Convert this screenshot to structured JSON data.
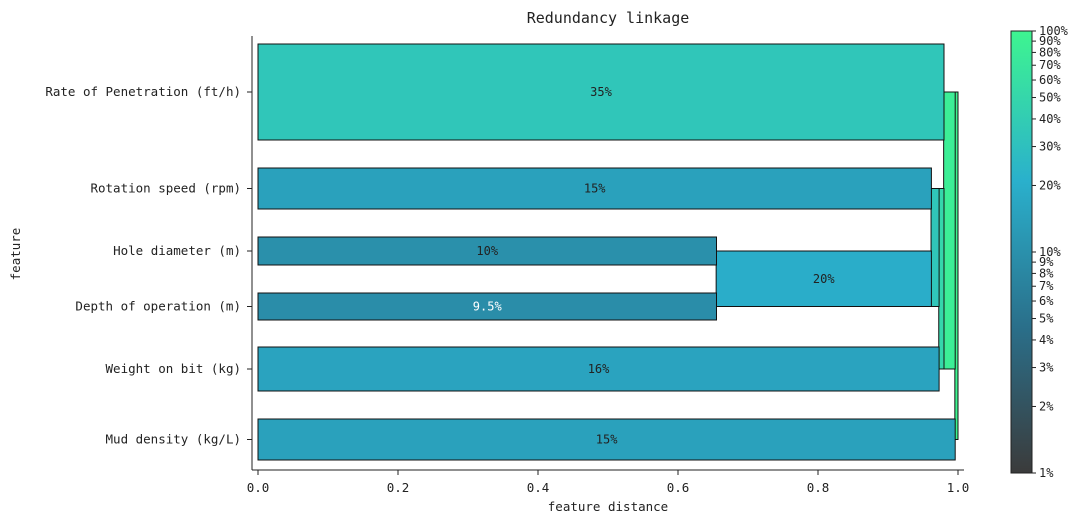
{
  "chart_data": {
    "type": "bar",
    "orientation": "horizontal",
    "title": "Redundancy linkage",
    "xlabel": "feature distance",
    "ylabel": "feature",
    "xlim": [
      0.0,
      1.0
    ],
    "xticks": [
      {
        "value": 0.0,
        "label": "0.0"
      },
      {
        "value": 0.2,
        "label": "0.2"
      },
      {
        "value": 0.4,
        "label": "0.4"
      },
      {
        "value": 0.6,
        "label": "0.6"
      },
      {
        "value": 0.8,
        "label": "0.8"
      },
      {
        "value": 1.0,
        "label": "1.0"
      }
    ],
    "features": [
      {
        "name": "Rate of Penetration (ft/h)",
        "distance": 0.98,
        "label": "35%",
        "percent": 35
      },
      {
        "name": "Rotation speed (rpm)",
        "distance": 0.962,
        "label": "15%",
        "percent": 15
      },
      {
        "name": "Hole diameter (m)",
        "distance": 0.655,
        "label": "10%",
        "percent": 10
      },
      {
        "name": "Depth of operation (m)",
        "distance": 0.655,
        "label": "9.5%",
        "percent": 9.5
      },
      {
        "name": "Weight on bit (kg)",
        "distance": 0.973,
        "label": "16%",
        "percent": 16
      },
      {
        "name": "Mud density (kg/L)",
        "distance": 0.996,
        "label": "15%",
        "percent": 15
      }
    ],
    "clusters": [
      {
        "members": [
          "Hole diameter (m)",
          "Depth of operation (m)"
        ],
        "distance": 0.962,
        "label": "20%",
        "percent": 20
      },
      {
        "members": [
          "Rotation speed (rpm)",
          "Hole diameter (m)",
          "Depth of operation (m)"
        ],
        "distance": 0.973,
        "label": "",
        "percent": 35
      },
      {
        "members": [
          "Rotation speed (rpm)",
          "Hole diameter (m)",
          "Depth of operation (m)",
          "Weight on bit (kg)"
        ],
        "distance": 0.98,
        "label": "",
        "percent": 50
      },
      {
        "members": [
          "Rate of Penetration (ft/h)",
          "Rotation speed (rpm)",
          "Hole diameter (m)",
          "Depth of operation (m)",
          "Weight on bit (kg)"
        ],
        "distance": 0.996,
        "label": "",
        "percent": 85
      },
      {
        "members": [
          "Rate of Penetration (ft/h)",
          "Rotation speed (rpm)",
          "Hole diameter (m)",
          "Depth of operation (m)",
          "Weight on bit (kg)",
          "Mud density (kg/L)"
        ],
        "distance": 1.0,
        "label": "",
        "percent": 100
      }
    ],
    "colorbar": {
      "scale": "log",
      "range_percent": [
        1,
        100
      ],
      "colors": [
        "#3b3b3b",
        "#2a6f8a",
        "#2ab0cc",
        "#3ef590"
      ],
      "ticks": [
        {
          "value": 1,
          "label": "1%"
        },
        {
          "value": 2,
          "label": "2%"
        },
        {
          "value": 3,
          "label": "3%"
        },
        {
          "value": 4,
          "label": "4%"
        },
        {
          "value": 5,
          "label": "5%"
        },
        {
          "value": 6,
          "label": "6%"
        },
        {
          "value": 7,
          "label": "7%"
        },
        {
          "value": 8,
          "label": "8%"
        },
        {
          "value": 9,
          "label": "9%"
        },
        {
          "value": 10,
          "label": "10%"
        },
        {
          "value": 20,
          "label": "20%"
        },
        {
          "value": 30,
          "label": "30%"
        },
        {
          "value": 40,
          "label": "40%"
        },
        {
          "value": 50,
          "label": "50%"
        },
        {
          "value": 60,
          "label": "60%"
        },
        {
          "value": 70,
          "label": "70%"
        },
        {
          "value": 80,
          "label": "80%"
        },
        {
          "value": 90,
          "label": "90%"
        },
        {
          "value": 100,
          "label": "100%"
        }
      ]
    }
  }
}
